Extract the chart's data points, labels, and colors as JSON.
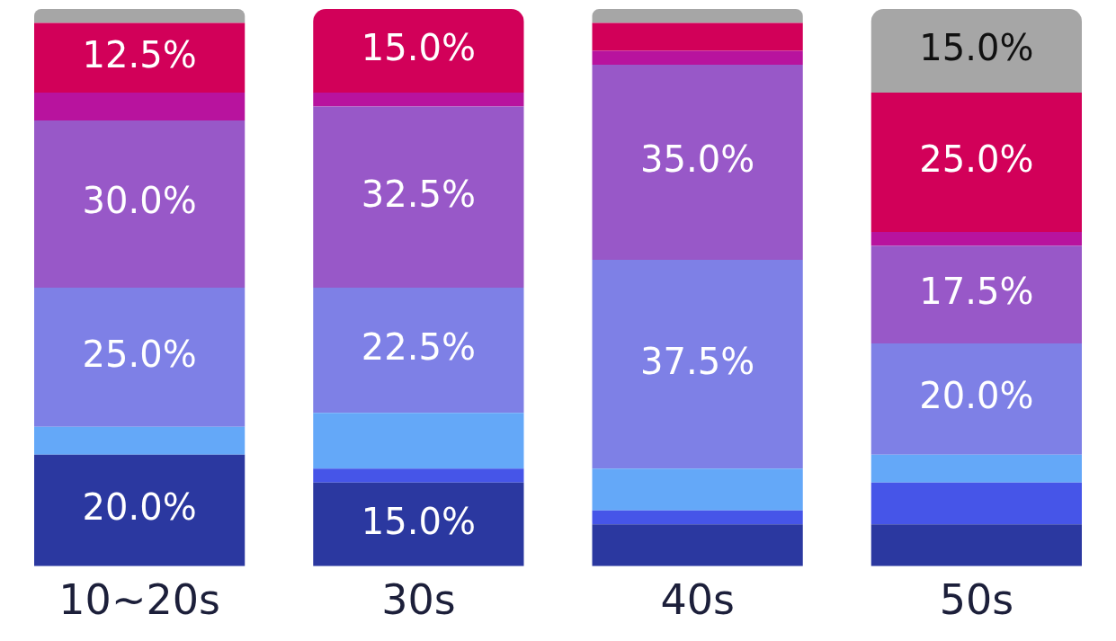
{
  "chart_data": {
    "type": "bar",
    "stacked": true,
    "categories": [
      "10~20s",
      "30s",
      "40s",
      "50s"
    ],
    "ylim": [
      0,
      100
    ],
    "tick_labels": "x",
    "legend": false,
    "grid": false,
    "series": [
      {
        "color": "#2b38a0",
        "values": [
          20,
          15,
          7.5,
          7.5
        ],
        "value_labels": [
          "20.0%",
          "15.0%",
          null,
          null
        ]
      },
      {
        "color": "#4655e8",
        "values": [
          0,
          2.5,
          2.5,
          7.5
        ],
        "value_labels": [
          null,
          null,
          null,
          null
        ]
      },
      {
        "color": "#64a8f8",
        "values": [
          5,
          10,
          7.5,
          5
        ],
        "value_labels": [
          null,
          null,
          null,
          null
        ]
      },
      {
        "color": "#7e80e6",
        "values": [
          25,
          22.5,
          37.5,
          20
        ],
        "value_labels": [
          "25.0%",
          "22.5%",
          "37.5%",
          "20.0%"
        ]
      },
      {
        "color": "#9858c8",
        "values": [
          30,
          32.5,
          35,
          17.5
        ],
        "value_labels": [
          "30.0%",
          "32.5%",
          "35.0%",
          "17.5%"
        ]
      },
      {
        "color": "#b8139e",
        "values": [
          5,
          2.5,
          2.5,
          2.5
        ],
        "value_labels": [
          null,
          null,
          null,
          null
        ]
      },
      {
        "color": "#d20059",
        "values": [
          12.5,
          15,
          5,
          25
        ],
        "value_labels": [
          "12.5%",
          "15.0%",
          null,
          "25.0%"
        ]
      },
      {
        "color": "#a6a6a6",
        "values": [
          2.5,
          0,
          2.5,
          15
        ],
        "value_labels": [
          null,
          null,
          null,
          "15.0%"
        ]
      }
    ]
  }
}
